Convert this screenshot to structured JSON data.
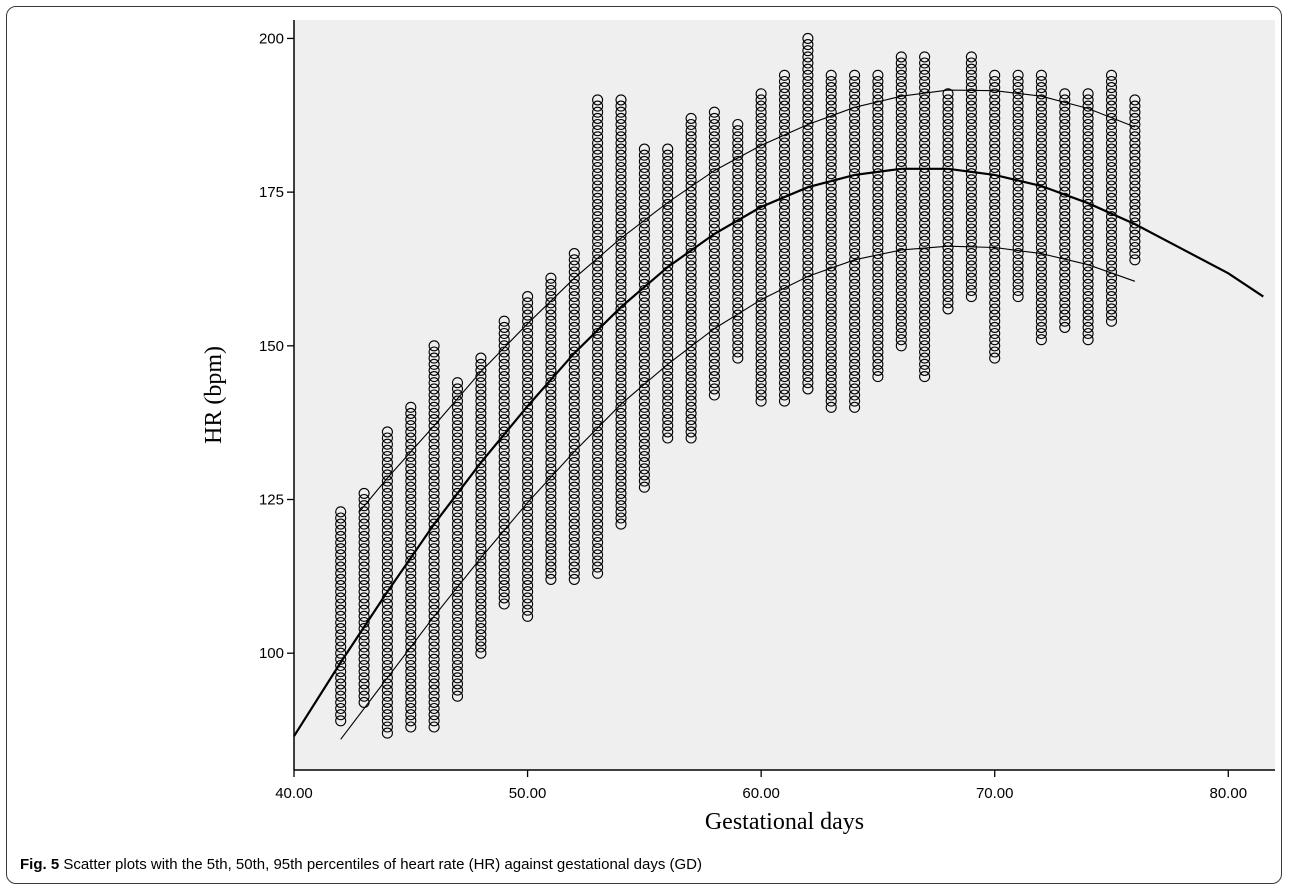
{
  "chart_data": {
    "type": "scatter",
    "xlabel": "Gestational days",
    "ylabel": "HR (bpm)",
    "xlim": [
      40,
      82
    ],
    "ylim": [
      81,
      203
    ],
    "x_ticks": [
      "40.00",
      "50.00",
      "60.00",
      "70.00",
      "80.00"
    ],
    "x_tick_values": [
      40,
      50,
      60,
      70,
      80
    ],
    "y_ticks": [
      "100",
      "125",
      "150",
      "175",
      "200"
    ],
    "y_tick_values": [
      100,
      125,
      150,
      175,
      200
    ],
    "grid": false,
    "background": "#efefef",
    "marker": "open-circle",
    "point_color": "#000000",
    "series": [
      {
        "kind": "scatter",
        "by_day": [
          {
            "x": 42,
            "min": 89,
            "max": 123
          },
          {
            "x": 43,
            "min": 92,
            "max": 126
          },
          {
            "x": 44,
            "min": 87,
            "max": 136
          },
          {
            "x": 45,
            "min": 88,
            "max": 140
          },
          {
            "x": 46,
            "min": 88,
            "max": 150
          },
          {
            "x": 47,
            "min": 93,
            "max": 144
          },
          {
            "x": 48,
            "min": 100,
            "max": 148
          },
          {
            "x": 49,
            "min": 108,
            "max": 154
          },
          {
            "x": 50,
            "min": 106,
            "max": 158
          },
          {
            "x": 51,
            "min": 112,
            "max": 161
          },
          {
            "x": 52,
            "min": 112,
            "max": 165
          },
          {
            "x": 53,
            "min": 113,
            "max": 190
          },
          {
            "x": 54,
            "min": 121,
            "max": 190
          },
          {
            "x": 55,
            "min": 127,
            "max": 182
          },
          {
            "x": 56,
            "min": 135,
            "max": 182
          },
          {
            "x": 57,
            "min": 135,
            "max": 187
          },
          {
            "x": 58,
            "min": 142,
            "max": 188
          },
          {
            "x": 59,
            "min": 148,
            "max": 186
          },
          {
            "x": 60,
            "min": 141,
            "max": 191
          },
          {
            "x": 61,
            "min": 141,
            "max": 194
          },
          {
            "x": 62,
            "min": 143,
            "max": 200
          },
          {
            "x": 63,
            "min": 140,
            "max": 194
          },
          {
            "x": 64,
            "min": 140,
            "max": 194
          },
          {
            "x": 65,
            "min": 145,
            "max": 194
          },
          {
            "x": 66,
            "min": 150,
            "max": 197
          },
          {
            "x": 67,
            "min": 145,
            "max": 197
          },
          {
            "x": 68,
            "min": 156,
            "max": 191
          },
          {
            "x": 69,
            "min": 158,
            "max": 197
          },
          {
            "x": 70,
            "min": 148,
            "max": 194
          },
          {
            "x": 71,
            "min": 158,
            "max": 194
          },
          {
            "x": 72,
            "min": 151,
            "max": 194
          },
          {
            "x": 73,
            "min": 153,
            "max": 191
          },
          {
            "x": 74,
            "min": 151,
            "max": 191
          },
          {
            "x": 75,
            "min": 154,
            "max": 194
          },
          {
            "x": 76,
            "min": 164,
            "max": 190
          }
        ]
      },
      {
        "kind": "curve",
        "percentile": "50th",
        "x": [
          40,
          42,
          44,
          46,
          48,
          50,
          52,
          54,
          56,
          58,
          60,
          62,
          64,
          66,
          68,
          70,
          72,
          74,
          76,
          78,
          80,
          81.5
        ],
        "y": [
          86.5,
          98.5,
          110,
          121,
          131,
          140.2,
          148.8,
          156.3,
          162.8,
          168.2,
          172.6,
          175.8,
          177.8,
          178.8,
          178.8,
          177.8,
          176,
          173.2,
          169.8,
          165.8,
          161.8,
          158
        ]
      },
      {
        "kind": "curve",
        "percentile": "95th",
        "x": [
          42.8,
          44,
          46,
          48,
          50,
          52,
          54,
          56,
          58,
          60,
          62,
          64,
          66,
          68,
          70,
          72,
          74,
          76
        ],
        "y": [
          123,
          128.5,
          137,
          145.8,
          153.6,
          161,
          167.5,
          173.3,
          178.5,
          182.6,
          186,
          188.8,
          190.6,
          191.6,
          191.5,
          190.6,
          188.6,
          185.6
        ]
      },
      {
        "kind": "curve",
        "percentile": "5th",
        "x": [
          42,
          44,
          46,
          48,
          50,
          52,
          54,
          56,
          58,
          60,
          62,
          64,
          66,
          68,
          70,
          72,
          74,
          76
        ],
        "y": [
          86,
          96,
          106,
          115.5,
          124.5,
          132.8,
          140.5,
          147,
          152.8,
          157.5,
          161.3,
          164,
          165.6,
          166.2,
          166,
          165,
          163.2,
          160.5
        ]
      }
    ]
  },
  "caption": {
    "label": "Fig. 5",
    "text": " Scatter plots with the 5th, 50th, 95th percentiles of heart rate (HR) against gestational days (GD)"
  }
}
